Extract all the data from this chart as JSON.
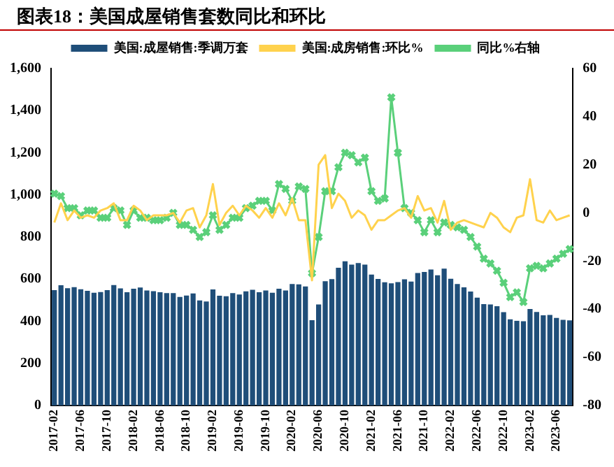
{
  "chart_data": {
    "type": "bar",
    "title": "图表18：美国成屋销售套数同比和环比",
    "categories": [
      "2017-02",
      null,
      null,
      null,
      "2017-06",
      null,
      null,
      null,
      "2017-10",
      null,
      null,
      null,
      "2018-02",
      null,
      null,
      null,
      "2018-06",
      null,
      null,
      null,
      "2018-10",
      null,
      null,
      null,
      "2019-02",
      null,
      null,
      null,
      "2019-06",
      null,
      null,
      null,
      "2019-10",
      null,
      null,
      null,
      "2020-02",
      null,
      null,
      null,
      "2020-06",
      null,
      null,
      null,
      "2020-10",
      null,
      null,
      null,
      "2021-02",
      null,
      null,
      null,
      "2021-06",
      null,
      null,
      null,
      "2021-10",
      null,
      null,
      null,
      "2022-02",
      null,
      null,
      null,
      "2022-06",
      null,
      null,
      null,
      "2022-10",
      null,
      null,
      null,
      "2023-02",
      null,
      null,
      null,
      "2023-06",
      null,
      null
    ],
    "series": [
      {
        "name": "美国:成屋销售:季调万套",
        "color": "#1f4e79",
        "values": [
          548,
          571,
          557,
          562,
          552,
          544,
          535,
          539,
          548,
          572,
          556,
          538,
          554,
          560,
          546,
          543,
          538,
          534,
          534,
          515,
          522,
          532,
          499,
          494,
          551,
          521,
          519,
          534,
          527,
          542,
          549,
          538,
          546,
          535,
          554,
          546,
          577,
          575,
          565,
          405,
          480,
          590,
          600,
          654,
          685,
          669,
          676,
          669,
          622,
          601,
          585,
          580,
          586,
          599,
          588,
          629,
          634,
          646,
          618,
          650,
          602,
          577,
          561,
          541,
          512,
          481,
          480,
          471,
          443,
          409,
          402,
          400,
          458,
          444,
          428,
          430,
          416,
          407,
          404
        ]
      },
      {
        "name": "美国:成房销售:环比%",
        "type": "line",
        "axis": "y2",
        "color": "#ffd24d",
        "marker": "none",
        "values": [
          -4,
          4,
          -3,
          1,
          -2,
          -1,
          -2,
          1,
          2,
          4,
          -3,
          -3,
          3,
          1,
          -3,
          -1,
          -1,
          -1,
          0,
          -4,
          1,
          2,
          -6,
          -1,
          12,
          -5,
          0,
          3,
          -1,
          3,
          1,
          -2,
          2,
          -2,
          4,
          -1,
          6,
          -3,
          -3,
          -28,
          20,
          24,
          2,
          8,
          5,
          -2,
          1,
          -1,
          -7,
          -3,
          -3,
          -1,
          1,
          2,
          -2,
          7,
          1,
          2,
          -4,
          5,
          -7,
          -4,
          -3,
          -4,
          -5,
          -6,
          0,
          -2,
          -6,
          -8,
          -2,
          -1,
          14,
          -3,
          -4,
          1,
          -3,
          -2,
          -1
        ]
      },
      {
        "name": "同比%右轴",
        "type": "line",
        "axis": "y2",
        "color": "#5ad07a",
        "marker": "cross",
        "values": [
          8,
          7,
          2,
          2,
          -1,
          1,
          1,
          -2,
          -2,
          2,
          1,
          -5,
          1,
          -2,
          -2,
          -3,
          -3,
          -2,
          0,
          -5,
          -5,
          -7,
          -10,
          -8,
          -1,
          -7,
          -5,
          -2,
          -2,
          2,
          3,
          5,
          5,
          1,
          12,
          10,
          5,
          11,
          10,
          -25,
          -10,
          9,
          9,
          19,
          25,
          24,
          21,
          23,
          9,
          5,
          6,
          48,
          25,
          2,
          0,
          -3,
          -8,
          -3,
          -8,
          -4,
          -5,
          -6,
          -7,
          -10,
          -14,
          -19,
          -21,
          -24,
          -29,
          -35,
          -33,
          -37,
          -23,
          -22,
          -23,
          -21,
          -19,
          -17,
          -15
        ]
      }
    ],
    "ylim": [
      0,
      1600
    ],
    "yticks": [
      0,
      200,
      400,
      600,
      800,
      {
        "value": 1000,
        "label": "1,000"
      },
      {
        "value": 1200,
        "label": "1,200"
      },
      {
        "value": 1400,
        "label": "1,400"
      },
      {
        "value": 1600,
        "label": "1,600"
      }
    ],
    "y2lim": [
      -80,
      60
    ],
    "y2ticks": [
      -80,
      -60,
      -40,
      -20,
      0,
      20,
      40,
      60
    ],
    "grid": false,
    "legend": "top"
  }
}
